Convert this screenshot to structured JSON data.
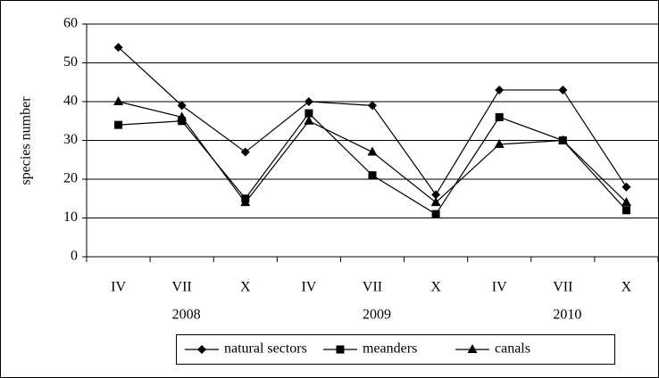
{
  "chart_data": {
    "type": "line",
    "y_label": "species number",
    "categories": [
      "IV",
      "VII",
      "X",
      "IV",
      "VII",
      "X",
      "IV",
      "VII",
      "X"
    ],
    "year_categories": [
      null,
      "2008",
      null,
      null,
      "2009",
      null,
      null,
      "2010",
      null
    ],
    "series": [
      {
        "name": "natural sectors",
        "color": "#000000",
        "marker": "diamond",
        "values": [
          54,
          39,
          27,
          40,
          39,
          16,
          43,
          43,
          18
        ]
      },
      {
        "name": "meanders",
        "color": "#000000",
        "marker": "square",
        "values": [
          34,
          35,
          15,
          37,
          21,
          11,
          36,
          30,
          12
        ]
      },
      {
        "name": "canals",
        "color": "#000000",
        "marker": "triangle",
        "values": [
          40,
          36,
          14,
          35,
          27,
          14,
          29,
          30,
          14
        ]
      }
    ],
    "ylim": [
      0,
      60
    ],
    "yticks": [
      0,
      10,
      20,
      30,
      40,
      50,
      60
    ],
    "grid": true,
    "legend": "bottom"
  }
}
